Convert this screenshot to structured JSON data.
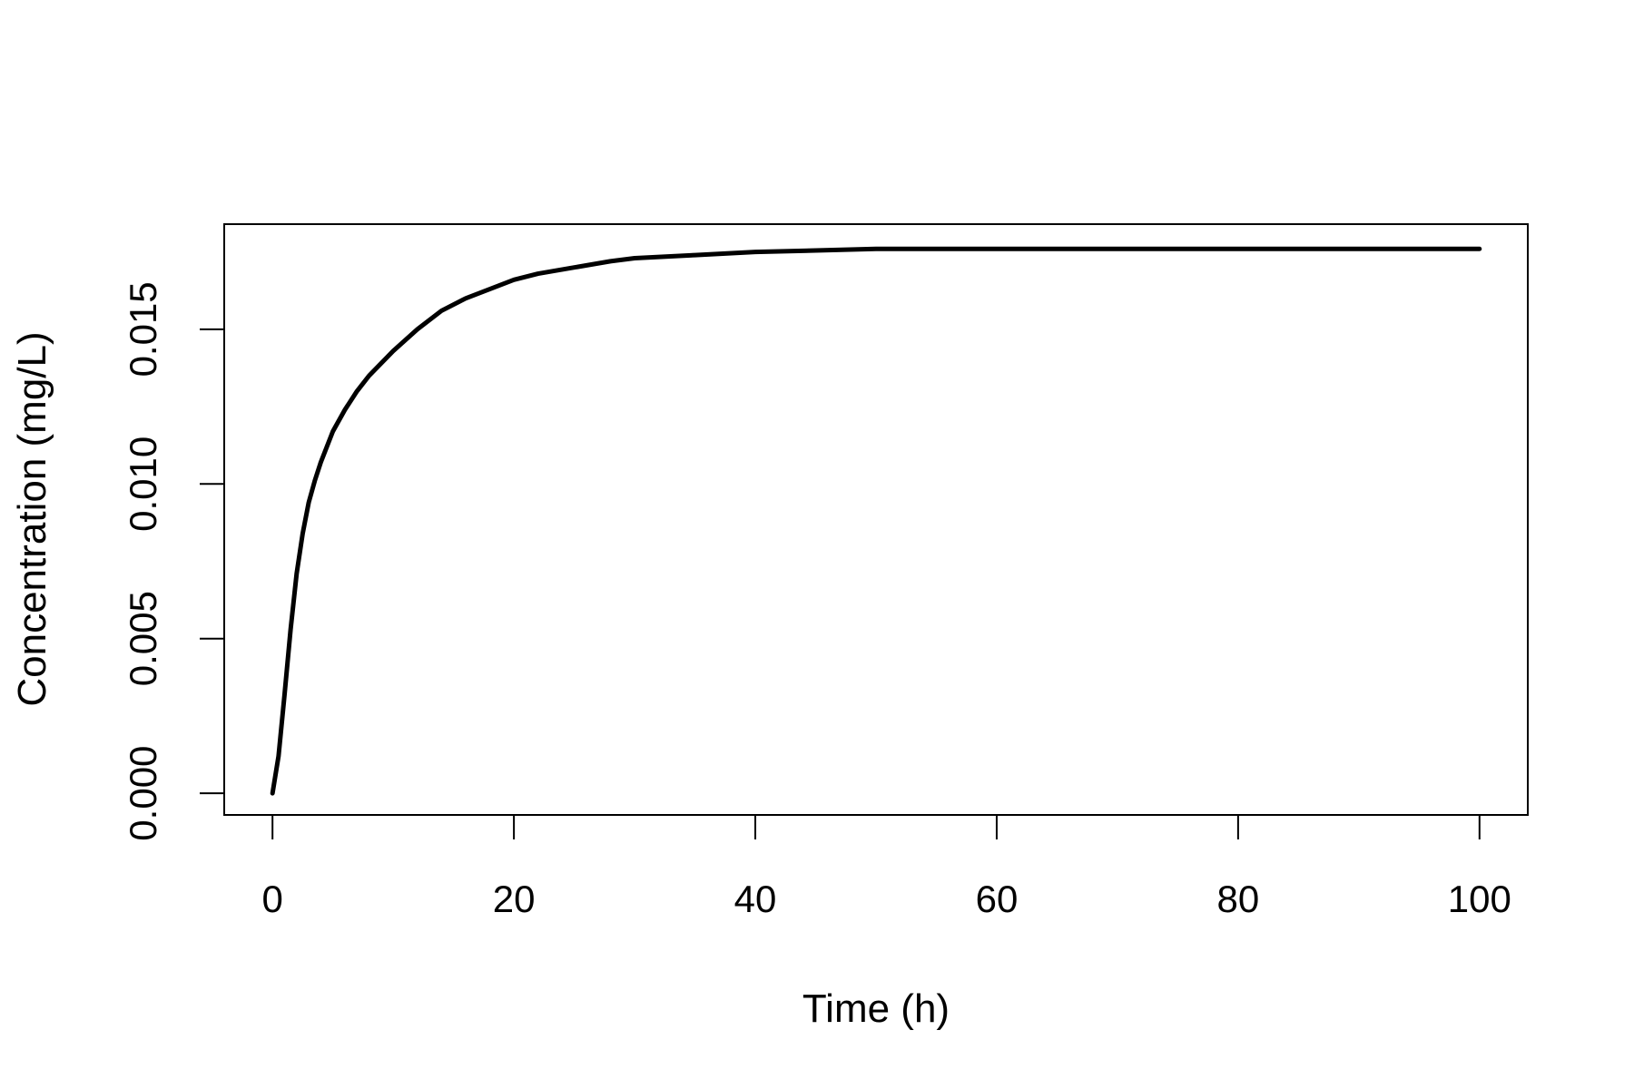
{
  "chart_data": {
    "type": "line",
    "title": "",
    "xlabel": "Time (h)",
    "ylabel": "Concentration (mg/L)",
    "xlim": [
      -4,
      104
    ],
    "ylim": [
      -0.0007,
      0.0184
    ],
    "x_ticks": [
      {
        "value": 0,
        "label": "0"
      },
      {
        "value": 20,
        "label": "20"
      },
      {
        "value": 40,
        "label": "40"
      },
      {
        "value": 60,
        "label": "60"
      },
      {
        "value": 80,
        "label": "80"
      },
      {
        "value": 100,
        "label": "100"
      }
    ],
    "y_ticks": [
      {
        "value": 0.0,
        "label": "0.000"
      },
      {
        "value": 0.005,
        "label": "0.005"
      },
      {
        "value": 0.01,
        "label": "0.010"
      },
      {
        "value": 0.015,
        "label": "0.015"
      }
    ],
    "grid": false,
    "legend": "none",
    "line_color": "#000000",
    "series": [
      {
        "x": [
          0,
          0.5,
          1,
          1.5,
          2,
          2.5,
          3,
          3.5,
          4,
          5,
          6,
          7,
          8,
          9,
          10,
          12,
          14,
          16,
          18,
          20,
          22,
          25,
          28,
          30,
          35,
          40,
          45,
          50,
          60,
          70,
          80,
          90,
          100
        ],
        "values": [
          0.0,
          0.0012,
          0.0032,
          0.0053,
          0.0071,
          0.0084,
          0.0094,
          0.0101,
          0.0107,
          0.0117,
          0.0124,
          0.013,
          0.0135,
          0.0139,
          0.0143,
          0.015,
          0.0156,
          0.016,
          0.0163,
          0.0166,
          0.0168,
          0.017,
          0.0172,
          0.0173,
          0.0174,
          0.0175,
          0.01755,
          0.0176,
          0.0176,
          0.0176,
          0.0176,
          0.0176,
          0.0176
        ]
      }
    ]
  }
}
